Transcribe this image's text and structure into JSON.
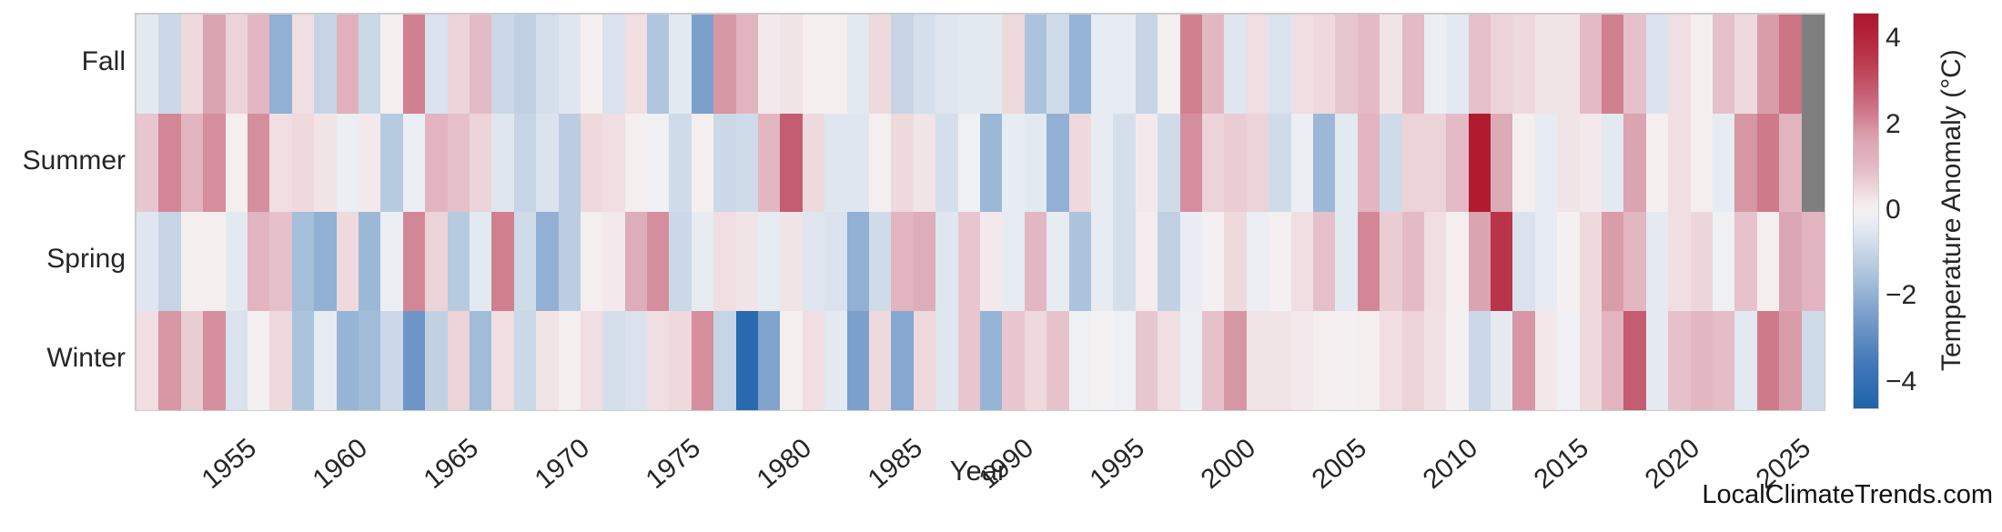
{
  "figure": {
    "background": "#ffffff",
    "plot_border_color": "#cccccc"
  },
  "y_axis": {
    "categories": [
      "Fall",
      "Summer",
      "Spring",
      "Winter"
    ]
  },
  "x_axis": {
    "label": "Year",
    "tick_years": [
      1955,
      1960,
      1965,
      1970,
      1975,
      1980,
      1985,
      1990,
      1995,
      2000,
      2005,
      2010,
      2015,
      2020,
      2025
    ]
  },
  "colorbar": {
    "label": "Temperature Anomaly (°C)",
    "tick_values": [
      4,
      2,
      0,
      -2,
      -4
    ],
    "tick_labels": [
      "4",
      "2",
      "0",
      "−2",
      "−4"
    ],
    "vmin": -4.6,
    "vmax": 4.6
  },
  "watermark": "LocalClimateTrends.com",
  "chart_data": {
    "type": "heatmap",
    "title": "",
    "xlabel": "Year",
    "x_start_year": 1950,
    "x_end_year": 2025,
    "rows": [
      "Fall",
      "Summer",
      "Spring",
      "Winter"
    ],
    "value_units": "°C temperature anomaly",
    "missing_value_color": "#7f7f7f",
    "legend_position": "right-colorbar",
    "grid": false,
    "series": [
      {
        "name": "Fall",
        "values": [
          -0.4,
          -0.9,
          0.5,
          1.7,
          0.6,
          1.1,
          -2.0,
          0.4,
          -1.0,
          1.3,
          -0.9,
          0.1,
          2.2,
          -0.6,
          0.6,
          1.0,
          -0.9,
          -1.1,
          -0.7,
          -0.5,
          0.1,
          -0.6,
          0.4,
          -1.4,
          -0.4,
          -2.4,
          1.9,
          1.2,
          0.2,
          0.3,
          0.1,
          0.1,
          -0.4,
          0.5,
          -1.0,
          -0.7,
          -0.5,
          -0.4,
          -0.4,
          0.5,
          -1.5,
          -0.8,
          -1.9,
          -0.3,
          -0.3,
          -1.0,
          0.1,
          2.2,
          1.1,
          -0.5,
          0.4,
          -0.6,
          0.4,
          0.5,
          0.8,
          1.0,
          0.3,
          1.0,
          -0.2,
          -0.4,
          0.9,
          0.6,
          0.5,
          0.3,
          0.3,
          1.0,
          2.2,
          0.9,
          -0.6,
          0.4,
          0.1,
          0.9,
          0.5,
          1.8,
          2.4,
          null
        ]
      },
      {
        "name": "Summer",
        "values": [
          0.8,
          2.1,
          1.2,
          2.0,
          0.1,
          2.0,
          0.4,
          0.5,
          0.3,
          -0.2,
          0.2,
          -1.3,
          -0.2,
          1.2,
          0.9,
          0.6,
          -0.5,
          -1.0,
          -0.6,
          -1.2,
          0.5,
          0.4,
          0.1,
          -0.1,
          -0.8,
          0.1,
          -0.9,
          -0.8,
          1.1,
          2.8,
          0.5,
          -0.5,
          -0.5,
          0.1,
          0.5,
          0.3,
          -0.7,
          -0.1,
          -1.8,
          -0.3,
          -0.4,
          -2.0,
          0.5,
          -0.3,
          -0.7,
          0.2,
          -0.8,
          2.0,
          0.6,
          0.7,
          0.6,
          -0.8,
          -0.2,
          -1.8,
          -0.4,
          1.2,
          -0.8,
          0.6,
          0.6,
          1.0,
          4.4,
          1.5,
          0.1,
          -0.3,
          0.3,
          0.2,
          -0.4,
          1.7,
          0.1,
          0.4,
          0.1,
          -0.3,
          1.9,
          2.3,
          1.2,
          null
        ]
      },
      {
        "name": "Spring",
        "values": [
          -0.5,
          -1.0,
          0.1,
          0.1,
          -0.4,
          1.2,
          0.9,
          -1.6,
          -2.0,
          0.5,
          -1.8,
          -0.2,
          2.1,
          0.6,
          -1.3,
          -0.4,
          2.2,
          -0.8,
          -2.0,
          -1.2,
          0.1,
          0.2,
          1.4,
          2.0,
          -0.9,
          -0.3,
          0.4,
          0.3,
          -0.3,
          0.3,
          -0.5,
          -0.6,
          -2.0,
          -0.8,
          1.2,
          1.4,
          -0.5,
          0.8,
          0.2,
          -0.3,
          1.1,
          -0.3,
          -1.5,
          -0.3,
          -0.7,
          0.15,
          -1.1,
          -0.25,
          0.05,
          0.5,
          -0.2,
          0.05,
          0.4,
          0.9,
          -0.4,
          2.1,
          0.7,
          1.0,
          0.4,
          0.1,
          1.7,
          3.6,
          -0.6,
          -0.3,
          0.05,
          0.5,
          1.8,
          1.1,
          -0.35,
          0.4,
          0.55,
          -0.1,
          0.85,
          0.1,
          1.6,
          1.2
        ]
      },
      {
        "name": "Winter",
        "values": [
          0.4,
          1.9,
          0.7,
          2.0,
          -0.6,
          0.05,
          0.5,
          -1.5,
          -0.3,
          -1.9,
          -1.7,
          -0.9,
          -2.7,
          -1.1,
          0.6,
          -1.7,
          0.4,
          -0.9,
          0.3,
          0.1,
          0.4,
          -0.7,
          -0.6,
          0.4,
          0.5,
          2.0,
          -1.0,
          -4.3,
          -2.3,
          0.1,
          0.4,
          -0.4,
          -2.4,
          0.5,
          -2.2,
          0.5,
          -0.5,
          0.8,
          -1.9,
          0.8,
          0.5,
          0.85,
          -0.1,
          0.0,
          -0.1,
          0.8,
          0.4,
          -0.2,
          0.9,
          1.9,
          0.3,
          0.3,
          0.2,
          0.1,
          0.05,
          0.1,
          0.4,
          0.6,
          0.35,
          0.05,
          -0.9,
          -0.35,
          1.9,
          0.25,
          -0.1,
          0.5,
          1.2,
          2.8,
          -0.35,
          0.9,
          1.1,
          0.95,
          -0.4,
          2.3,
          1.8,
          -0.8
        ]
      }
    ],
    "colormap_stops": [
      [
        -4.6,
        "#1f63aa"
      ],
      [
        -3.5,
        "#4579b8"
      ],
      [
        -2.4,
        "#7ca0cc"
      ],
      [
        -1.7,
        "#a0bcd9"
      ],
      [
        -1.0,
        "#c6d4e5"
      ],
      [
        -0.5,
        "#dfe6ef"
      ],
      [
        -0.15,
        "#edeff4"
      ],
      [
        0.0,
        "#f4f1f2"
      ],
      [
        0.15,
        "#f4ecee"
      ],
      [
        0.5,
        "#eed9dd"
      ],
      [
        1.0,
        "#e3bac5"
      ],
      [
        1.7,
        "#dba4b1"
      ],
      [
        2.2,
        "#d1808f"
      ],
      [
        2.8,
        "#c45c72"
      ],
      [
        3.6,
        "#ba3449"
      ],
      [
        4.4,
        "#b01b30"
      ],
      [
        4.6,
        "#ae1a2e"
      ]
    ]
  }
}
